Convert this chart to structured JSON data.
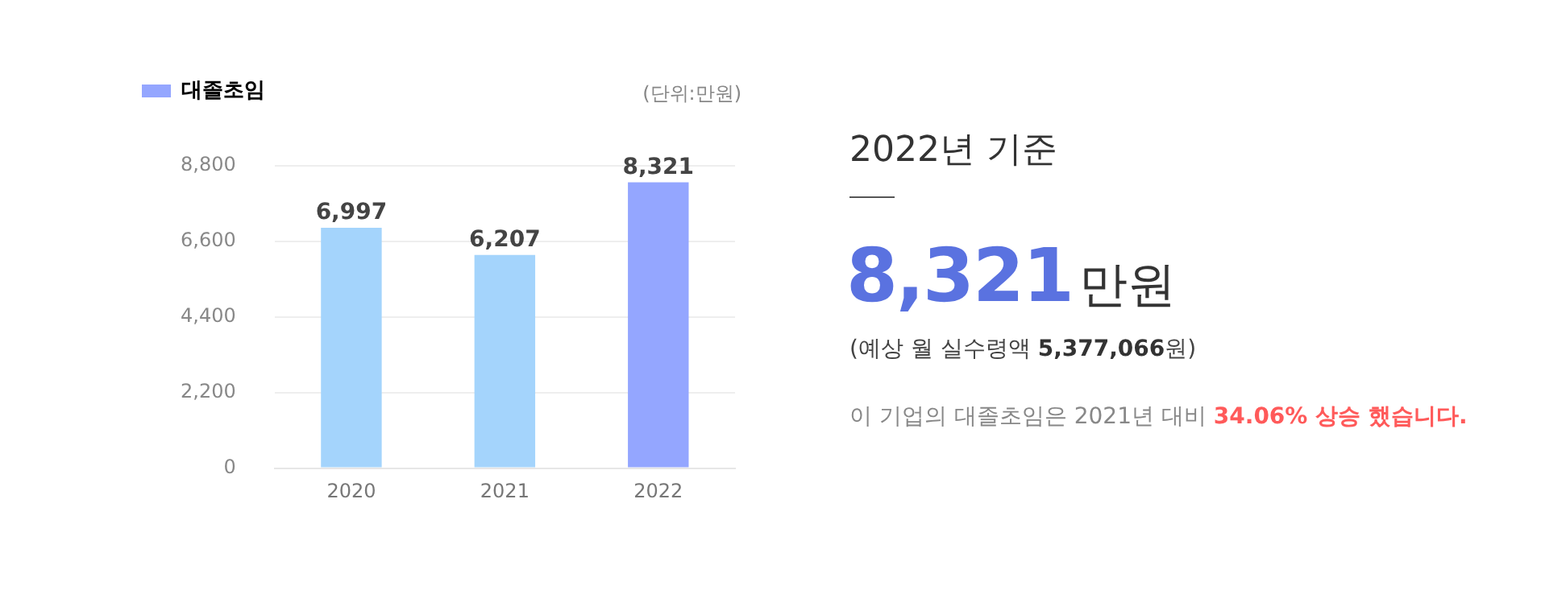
{
  "chart_data": {
    "type": "bar",
    "categories": [
      "2020",
      "2021",
      "2022"
    ],
    "series": [
      {
        "name": "대졸초임",
        "color": "#94a6ff",
        "colors": [
          "#a4d4fc",
          "#a4d4fc",
          "#94a6ff"
        ],
        "values": [
          6997,
          6207,
          8321
        ],
        "value_labels": [
          "6,997",
          "6,207",
          "8,321"
        ]
      }
    ],
    "ylim": [
      0,
      8800
    ],
    "yticks": [
      0,
      {
        "value": 2200,
        "label": "2,200"
      },
      {
        "value": 4400,
        "label": "4,400"
      },
      {
        "value": 6600,
        "label": "6,600"
      },
      {
        "value": 8800,
        "label": "8,800"
      }
    ],
    "grid": "y",
    "legend": "top left",
    "annotations": [
      "(단위:만원)",
      "2022년 기준",
      "8,321",
      "만원",
      "(예상 월 실수령액",
      "5,377,066",
      "원)",
      "이 기업의 대졸초임은 2021년 대비",
      "34.06% 상승 했습니다."
    ]
  }
}
